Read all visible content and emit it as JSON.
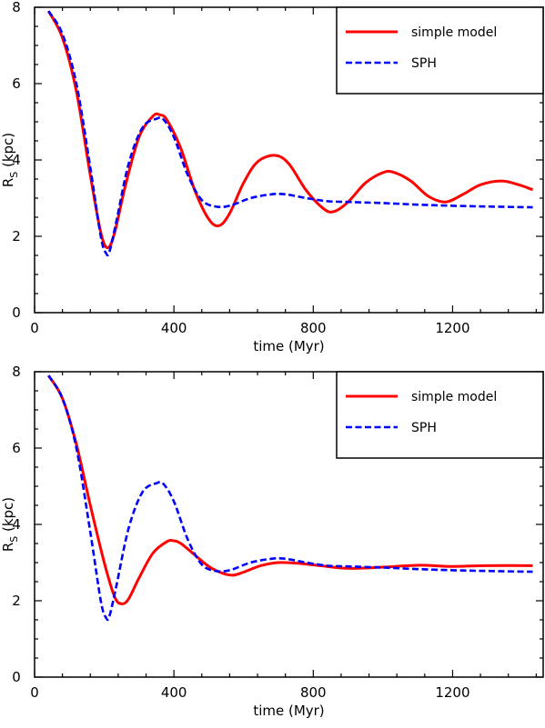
{
  "chart_data": [
    {
      "type": "line",
      "title": "",
      "xlabel": "time (Myr)",
      "ylabel": "R",
      "ylabel_sub": "S",
      "ylabel_unit": " (kpc)",
      "xlim": [
        0,
        1460
      ],
      "ylim": [
        0,
        8
      ],
      "xticks": [
        0,
        400,
        800,
        1200
      ],
      "yticks": [
        0,
        2,
        4,
        6,
        8
      ],
      "grid": false,
      "legend_position": "top-right",
      "series": [
        {
          "name": "simple model",
          "color": "#ff0000",
          "style": "solid",
          "x": [
            40,
            80,
            120,
            160,
            190,
            210,
            230,
            260,
            300,
            340,
            360,
            380,
            420,
            460,
            500,
            530,
            560,
            600,
            640,
            690,
            730,
            780,
            830,
            860,
            900,
            950,
            1000,
            1030,
            1080,
            1130,
            1180,
            1230,
            1280,
            1340,
            1390,
            1430
          ],
          "y": [
            7.9,
            7.2,
            5.8,
            3.6,
            2.1,
            1.7,
            2.1,
            3.3,
            4.6,
            5.15,
            5.18,
            5.05,
            4.3,
            3.2,
            2.45,
            2.28,
            2.6,
            3.4,
            3.95,
            4.12,
            3.9,
            3.2,
            2.72,
            2.65,
            2.9,
            3.4,
            3.67,
            3.68,
            3.45,
            3.05,
            2.9,
            3.1,
            3.35,
            3.45,
            3.35,
            3.22
          ]
        },
        {
          "name": "SPH",
          "color": "#0000ff",
          "style": "dashed",
          "x": [
            40,
            80,
            120,
            160,
            190,
            205,
            215,
            235,
            270,
            310,
            350,
            370,
            400,
            440,
            480,
            520,
            560,
            620,
            680,
            720,
            780,
            840,
            900,
            1000,
            1100,
            1200,
            1300,
            1430
          ],
          "y": [
            7.9,
            7.3,
            6.0,
            3.8,
            2.0,
            1.56,
            1.6,
            2.4,
            3.9,
            4.85,
            5.08,
            5.06,
            4.6,
            3.6,
            2.95,
            2.78,
            2.8,
            3.0,
            3.1,
            3.1,
            3.0,
            2.92,
            2.9,
            2.87,
            2.83,
            2.8,
            2.78,
            2.76
          ]
        }
      ]
    },
    {
      "type": "line",
      "title": "",
      "xlabel": "time (Myr)",
      "ylabel": "R",
      "ylabel_sub": "S",
      "ylabel_unit": " (kpc)",
      "xlim": [
        0,
        1460
      ],
      "ylim": [
        0,
        8
      ],
      "xticks": [
        0,
        400,
        800,
        1200
      ],
      "yticks": [
        0,
        2,
        4,
        6,
        8
      ],
      "grid": false,
      "legend_position": "top-right",
      "series": [
        {
          "name": "simple model",
          "color": "#ff0000",
          "style": "solid",
          "x": [
            40,
            80,
            120,
            160,
            200,
            230,
            250,
            270,
            300,
            340,
            380,
            400,
            420,
            460,
            500,
            540,
            570,
            600,
            650,
            700,
            760,
            820,
            900,
            1000,
            1100,
            1200,
            1300,
            1430
          ],
          "y": [
            7.9,
            7.3,
            6.1,
            4.5,
            3.0,
            2.1,
            1.92,
            2.05,
            2.6,
            3.25,
            3.55,
            3.57,
            3.5,
            3.2,
            2.9,
            2.72,
            2.67,
            2.75,
            2.92,
            3.0,
            2.98,
            2.92,
            2.85,
            2.88,
            2.93,
            2.9,
            2.92,
            2.92
          ]
        },
        {
          "name": "SPH",
          "color": "#0000ff",
          "style": "dashed",
          "x": [
            40,
            80,
            120,
            160,
            190,
            205,
            215,
            235,
            270,
            310,
            350,
            370,
            400,
            440,
            480,
            520,
            560,
            620,
            680,
            720,
            780,
            840,
            900,
            1000,
            1100,
            1200,
            1300,
            1430
          ],
          "y": [
            7.9,
            7.3,
            6.0,
            3.8,
            2.0,
            1.56,
            1.6,
            2.4,
            3.9,
            4.85,
            5.08,
            5.06,
            4.6,
            3.6,
            2.95,
            2.78,
            2.8,
            3.0,
            3.1,
            3.1,
            3.0,
            2.92,
            2.9,
            2.87,
            2.83,
            2.8,
            2.78,
            2.76
          ]
        }
      ]
    }
  ]
}
